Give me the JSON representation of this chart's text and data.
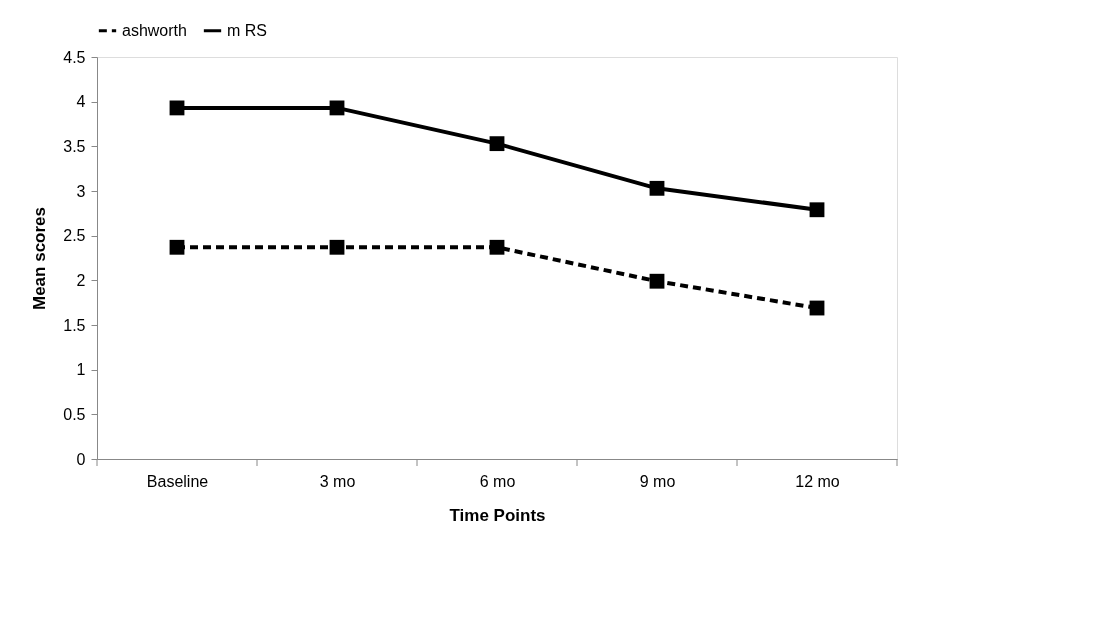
{
  "chart_data": {
    "type": "line",
    "xlabel": "Time Points",
    "ylabel": "Mean scores",
    "categories": [
      "Baseline",
      "3 mo",
      "6 mo",
      "9 mo",
      "12 mo"
    ],
    "series": [
      {
        "name": "ashworth",
        "color": "#000000",
        "line_style": "dashed",
        "values": [
          2.37,
          2.37,
          2.37,
          1.99,
          1.69
        ]
      },
      {
        "name": "m RS",
        "color": "#000000",
        "line_style": "solid",
        "values": [
          3.93,
          3.93,
          3.53,
          3.03,
          2.79
        ]
      }
    ],
    "ylim": [
      0,
      4.5
    ],
    "yticks": [
      0,
      0.5,
      1,
      1.5,
      2,
      2.5,
      3,
      3.5,
      4,
      4.5
    ],
    "grid": false,
    "legend": "top",
    "marker": "square"
  }
}
